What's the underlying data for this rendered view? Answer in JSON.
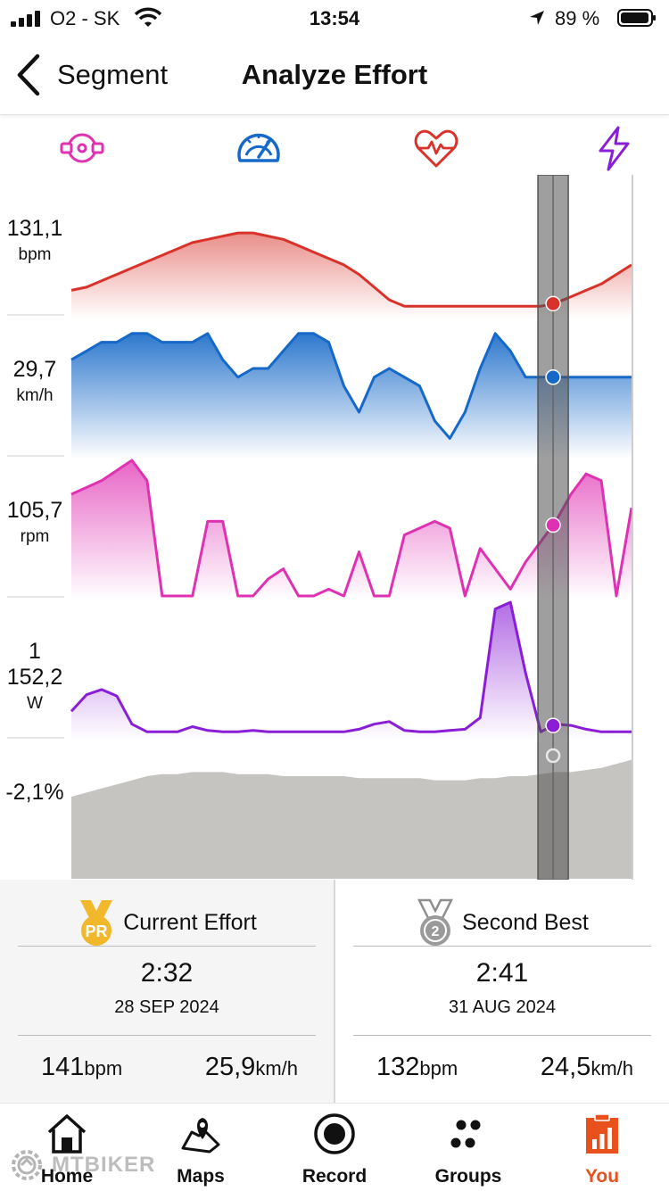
{
  "status": {
    "carrier": "O2 - SK",
    "time": "13:54",
    "battery_pct": "89 %"
  },
  "nav": {
    "back_label": "Segment",
    "title": "Analyze Effort"
  },
  "metric_icons": [
    "cadence-icon",
    "speedometer-icon",
    "heart-rate-icon",
    "power-icon"
  ],
  "colors": {
    "heart_rate": "#d8322a",
    "speed": "#1669c8",
    "cadence": "#df32b3",
    "power": "#8a1ed6",
    "elevation": "#c5c4c0",
    "accent": "#e8501c",
    "pr_gold": "#f2b82b",
    "silver": "#8e8e8e"
  },
  "rows": [
    {
      "key": "heart_rate",
      "value": "131,1",
      "unit": "bpm"
    },
    {
      "key": "speed",
      "value": "29,7",
      "unit": "km/h"
    },
    {
      "key": "cadence",
      "value": "105,7",
      "unit": "rpm"
    },
    {
      "key": "power",
      "value": "1 152,2",
      "unit": "W"
    },
    {
      "key": "grade",
      "value": "-2,1%",
      "unit": ""
    }
  ],
  "chart_data": {
    "type": "area",
    "cursor_x": 0.86,
    "series": [
      {
        "name": "heart rate",
        "values": [
          126,
          127,
          129,
          131,
          133,
          135,
          137,
          139,
          141,
          142,
          143,
          144,
          144,
          143,
          142,
          140,
          138,
          136,
          134,
          131,
          127,
          123,
          121,
          121,
          121,
          121,
          121,
          121,
          121,
          121,
          121,
          121,
          122,
          124,
          126,
          128,
          131,
          134
        ]
      },
      {
        "name": "speed",
        "values": [
          29,
          30,
          31,
          31,
          32,
          32,
          31,
          31,
          31,
          32,
          29,
          27,
          28,
          28,
          30,
          32,
          32,
          31,
          26,
          23,
          27,
          28,
          27,
          26,
          22,
          20,
          23,
          28,
          32,
          30,
          27,
          27,
          27,
          27,
          27,
          27,
          27,
          27
        ]
      },
      {
        "name": "cadence",
        "values": [
          100,
          102,
          104,
          107,
          110,
          104,
          70,
          70,
          70,
          92,
          92,
          70,
          70,
          75,
          78,
          70,
          70,
          72,
          70,
          83,
          70,
          70,
          88,
          90,
          92,
          90,
          70,
          84,
          78,
          72,
          80,
          86,
          92,
          100,
          106,
          104,
          70,
          96
        ]
      },
      {
        "name": "power",
        "values": [
          300,
          430,
          470,
          420,
          200,
          140,
          140,
          140,
          180,
          150,
          140,
          140,
          150,
          140,
          140,
          140,
          140,
          140,
          140,
          160,
          200,
          220,
          150,
          140,
          140,
          150,
          160,
          250,
          1100,
          1152,
          600,
          140,
          200,
          190,
          160,
          140,
          140,
          140
        ]
      },
      {
        "name": "elevation",
        "values": [
          60,
          62,
          64,
          66,
          68,
          70,
          71,
          71,
          72,
          72,
          72,
          71,
          71,
          71,
          70,
          70,
          70,
          70,
          70,
          69,
          69,
          69,
          69,
          69,
          68,
          68,
          68,
          69,
          69,
          70,
          70,
          71,
          72,
          72,
          73,
          74,
          76,
          78
        ]
      }
    ]
  },
  "summary": {
    "current": {
      "label": "Current Effort",
      "badge": "PR",
      "time": "2:32",
      "date": "28 SEP 2024",
      "hr": "141",
      "hr_unit": "bpm",
      "speed": "25,9",
      "speed_unit": "km/h"
    },
    "second": {
      "label": "Second Best",
      "badge": "2",
      "time": "2:41",
      "date": "31 AUG 2024",
      "hr": "132",
      "hr_unit": "bpm",
      "speed": "24,5",
      "speed_unit": "km/h"
    }
  },
  "tabs": [
    {
      "label": "Home",
      "icon": "home-icon"
    },
    {
      "label": "Maps",
      "icon": "map-icon"
    },
    {
      "label": "Record",
      "icon": "record-icon"
    },
    {
      "label": "Groups",
      "icon": "groups-icon"
    },
    {
      "label": "You",
      "icon": "chart-clipboard-icon",
      "active": true
    }
  ],
  "watermark": "MTBIKER"
}
